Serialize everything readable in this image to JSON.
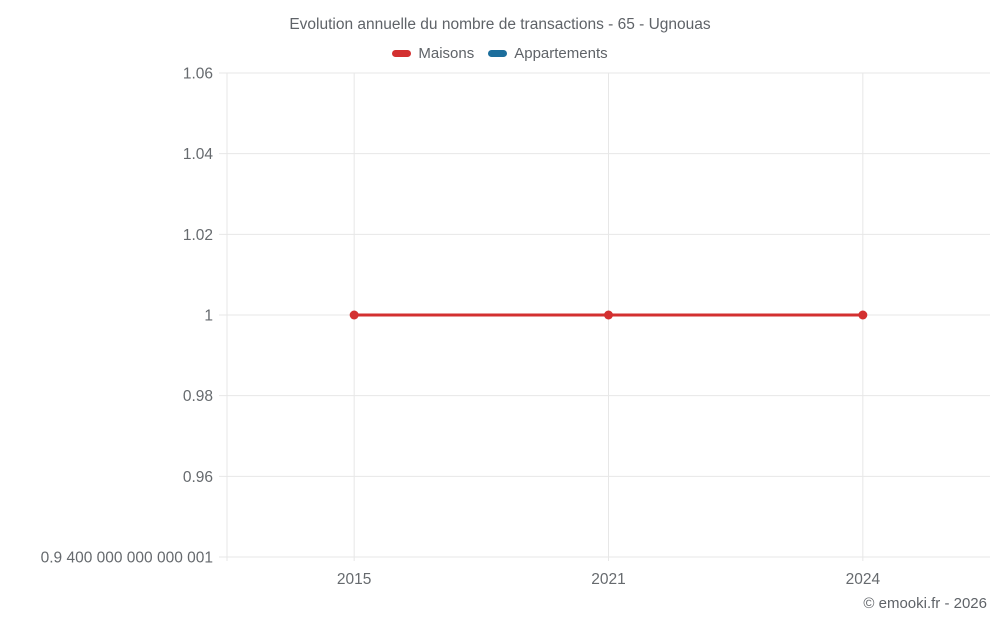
{
  "header": {
    "title": "Evolution annuelle du nombre de transactions - 65 - Ugnouas"
  },
  "legend": {
    "items": [
      {
        "label": "Maisons",
        "color": "#d33030"
      },
      {
        "label": "Appartements",
        "color": "#1c6e9c"
      }
    ]
  },
  "footer": {
    "copyright": "© emooki.fr - 2026"
  },
  "chart_data": {
    "type": "line",
    "title": "Evolution annuelle du nombre de transactions - 65 - Ugnouas",
    "categories": [
      "2015",
      "2021",
      "2024"
    ],
    "series": [
      {
        "name": "Maisons",
        "color": "#d33030",
        "values": [
          1,
          1,
          1
        ]
      },
      {
        "name": "Appartements",
        "color": "#1c6e9c",
        "values": []
      }
    ],
    "ylim": [
      0.94,
      1.06
    ],
    "yticks": [
      {
        "value": 1.06,
        "label": "1.06"
      },
      {
        "value": 1.04,
        "label": "1.04"
      },
      {
        "value": 1.02,
        "label": "1.02"
      },
      {
        "value": 1.0,
        "label": "1"
      },
      {
        "value": 0.98,
        "label": "0.98"
      },
      {
        "value": 0.96,
        "label": "0.96"
      },
      {
        "value": 0.94,
        "label": "0.9 400 000 000 000 001"
      }
    ],
    "grid": true,
    "grid_color": "#e7e7e7",
    "legend_position": "top"
  }
}
